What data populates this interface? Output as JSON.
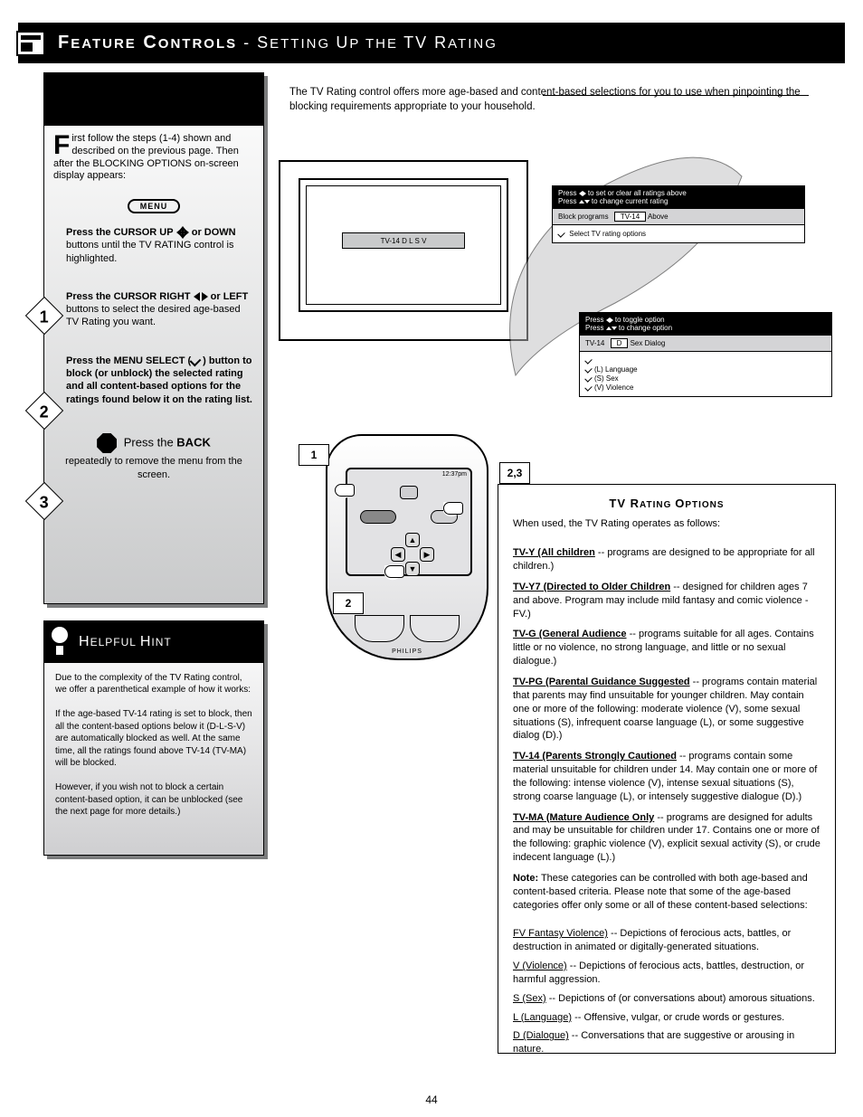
{
  "header": {
    "title_main_1": "F",
    "title_small_1": "EATURE",
    "title_main_2": " C",
    "title_small_2": "ONTROLS",
    "subtitle_sep": " - ",
    "subtitle_main_1": "S",
    "subtitle_small_1": "ETTING ",
    "subtitle_main_2": "U",
    "subtitle_small_2": "P THE ",
    "subtitle_main_3": "TV R",
    "subtitle_small_3": "ATING"
  },
  "intro_right": "The TV Rating control offers more age-based and content-based selections for you to use when pinpointing the blocking requirements appropriate to your household.",
  "tv_screen_label": "TV-14 D L S V",
  "menu1": {
    "header_line1_pre": "Press ",
    "header_line1_glyph": "lr",
    "header_line1_post": " to set or clear all ratings above",
    "header_line2_pre": "Press ",
    "header_line2_glyph": "ud",
    "header_line2_post": " to change current rating",
    "row_label": "Block programs",
    "row_value": "TV-14",
    "row_tail": " Above",
    "action": "Select TV rating options"
  },
  "menu2": {
    "header_line1_pre": "Press ",
    "header_line1_post": " to toggle option",
    "header_line2_pre": "Press ",
    "header_line2_post": " to change option",
    "row_label": "TV-14",
    "row_field": "D",
    "row_tail": " Sex Dialog",
    "opt1": "(L) Language",
    "opt2": "(S) Sex",
    "opt3": "(V) Violence"
  },
  "steps": {
    "intro_first": "F",
    "intro_rest": "irst follow the steps (1-4) shown and described on the previous page. Then after the BLOCKING OPTIONS on-screen display appears:",
    "menu_button": "MENU",
    "s1": {
      "n": "1",
      "a": "Press the CURSOR UP",
      "b": "or DOWN",
      "c": "buttons until the TV RATING control is highlighted."
    },
    "s2": {
      "n": "2",
      "a": "Press the CURSOR RIGHT",
      "b": "or LEFT",
      "c": "buttons to select the desired age-based TV Rating you want."
    },
    "s3": {
      "n": "3",
      "a": "Press the MENU SELECT (",
      "b": ") button to block (or unblock) the selected rating and all content-based options for the ratings found below it on the rating list."
    },
    "stop_a": "Press the ",
    "stop_b": "BACK",
    "stop_c": " repeatedly to remove the menu from the screen."
  },
  "callouts": {
    "c1": "1",
    "c23": "2,3",
    "c2": "2"
  },
  "remote": {
    "time": "12:37pm",
    "brand": "PHILIPS"
  },
  "hint": {
    "title_main_1": "H",
    "title_small_1": "ELPFUL ",
    "title_main_2": "H",
    "title_small_2": "INT",
    "p1": "Due to the complexity of the TV Rating control, we offer a parenthetical example of how it works:",
    "p2": "If the age-based TV-14 rating is set to block, then all the content-based options below it (D-L-S-V) are automatically blocked as well. At the same time, all the ratings found above TV-14 (TV-MA) will be blocked.",
    "p3": "However, if you wish not to block a certain content-based option, it can be unblocked (see the next page for more details.)"
  },
  "info": {
    "title_main_1": "TV R",
    "title_small_1": "ATING ",
    "title_main_2": "O",
    "title_small_2": "PTIONS",
    "intro": "When used, the TV Rating operates as follows:",
    "ages": [
      {
        "label": "TV-Y (All children",
        "tail": " -- programs are designed to be appropriate for all children.)"
      },
      {
        "label": "TV-Y7 (Directed to Older Children",
        "tail": " -- designed for children ages 7 and above. Program may include mild fantasy and comic violence - FV.)"
      },
      {
        "label": "TV-G (General Audience",
        "tail": " -- programs suitable for all ages. Contains little or no violence, no strong language, and little or no sexual dialogue.)"
      },
      {
        "label": "TV-PG (Parental Guidance Suggested",
        "tail": " -- programs contain material that parents may find unsuitable for younger children. May contain one or more of the following: moderate violence (V), some sexual situations (S), infrequent coarse language (L), or some suggestive dialog (D).)"
      },
      {
        "label": "TV-14 (Parents Strongly Cautioned",
        "tail": " -- programs contain some material unsuitable for children under 14. May contain one or more of the following: intense violence (V), intense sexual situations (S), strong coarse language (L), or intensely suggestive dialogue (D).)"
      },
      {
        "label": "TV-MA (Mature Audience Only",
        "tail": " -- programs are designed for adults and may be unsuitable for children under 17. Contains one or more of the following: graphic violence (V), explicit sexual activity (S), or crude indecent language (L).)"
      }
    ],
    "note_lead": "Note:",
    "note": " These categories can be controlled with both age-based and content-based criteria. Please note that some of the age-based categories offer only some or all of these content-based selections:",
    "contents": [
      {
        "label": "FV Fantasy Violence)",
        "text": " -- Depictions of ferocious acts, battles, or destruction in animated or digitally-generated situations."
      },
      {
        "label": "V (Violence)",
        "text": " -- Depictions of ferocious acts, battles, destruction, or harmful aggression."
      },
      {
        "label": "S (Sex)",
        "text": " -- Depictions of (or conversations about) amorous situations."
      },
      {
        "label": "L (Language)",
        "text": " -- Offensive, vulgar, or crude words or gestures."
      },
      {
        "label": "D (Dialogue)",
        "text": " -- Conversations that are suggestive or arousing in nature."
      }
    ]
  },
  "page_number": "44"
}
